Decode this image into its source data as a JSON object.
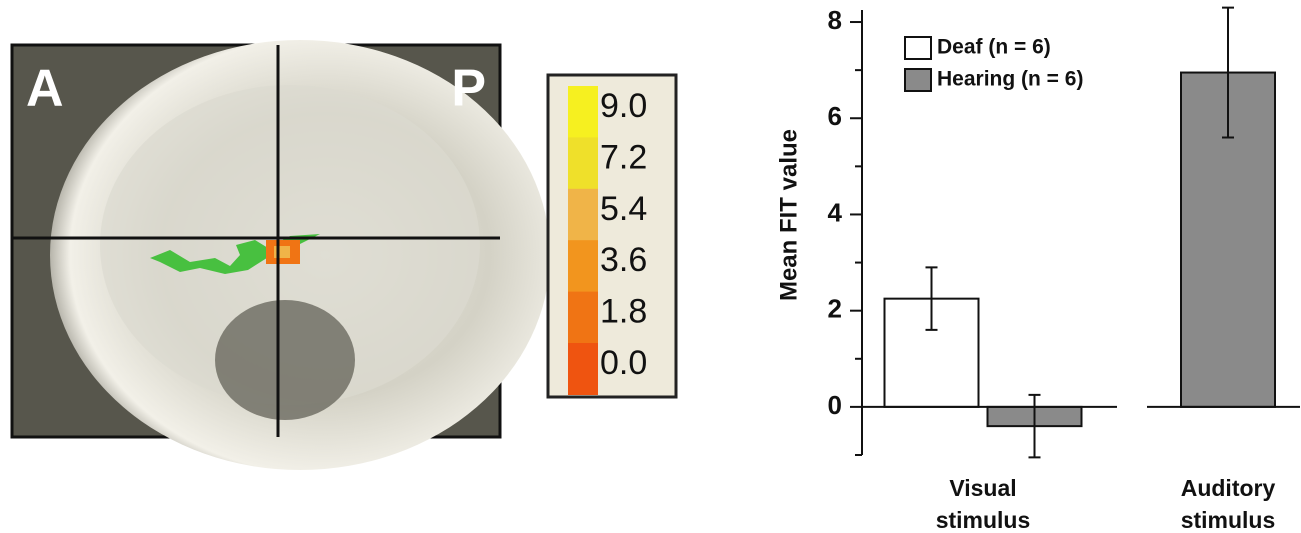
{
  "brain_panel": {
    "labels": [
      "A",
      "P"
    ],
    "colorbar": {
      "range": [
        0,
        9
      ],
      "ticks": [
        {
          "value": 9,
          "label": "9.0"
        },
        {
          "value": 7.2,
          "label": "7.2"
        },
        {
          "value": 5.4,
          "label": "5.4"
        },
        {
          "value": 3.6,
          "label": "3.6"
        },
        {
          "value": 1.8,
          "label": "1.8"
        },
        {
          "value": 0,
          "label": "0.0"
        }
      ],
      "colors": [
        "#f6f020",
        "#efe02a",
        "#f0b448",
        "#f2951e",
        "#f07414",
        "#ef5410"
      ]
    }
  },
  "chart_data": {
    "type": "bar",
    "ylabel": "Mean FIT value",
    "categories": [
      "Visual stimulus",
      "Auditory stimulus"
    ],
    "series": [
      {
        "name": "Deaf (n = 6)",
        "color": "#ffffff",
        "values": [
          2.25,
          null
        ],
        "errors": [
          0.65,
          null
        ]
      },
      {
        "name": "Hearing (n = 6)",
        "color": "#8a8a8a",
        "values": [
          -0.4,
          6.95
        ],
        "errors": [
          0.65,
          1.35
        ]
      }
    ],
    "ylim": [
      -1,
      8.25
    ],
    "yticks": [
      0,
      2,
      4,
      6,
      8
    ],
    "minor_yticks": [
      -1,
      1,
      3,
      5,
      7
    ],
    "legend": "upper left"
  }
}
